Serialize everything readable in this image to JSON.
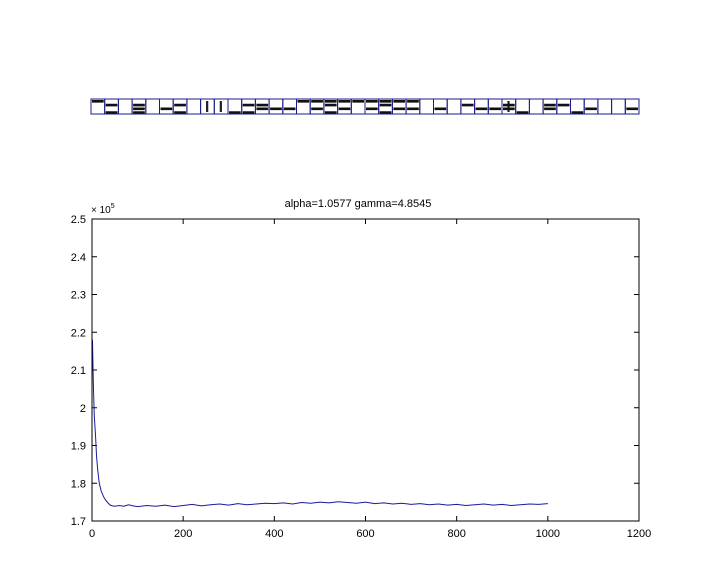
{
  "filter_strip": {
    "count": 40,
    "frame_color": "#1a1a8c",
    "tiles": [
      "1000000000000001111111110000000000000000",
      "0000000001000000000000000000001000000000",
      "0101001000011000010001000001001001100000",
      "0000000000000000000000000000000000000000",
      "0001010000001110101010110100111001001001",
      "0000000010000000000000000000000000000000",
      "0101001000110000010001000000000100010000",
      "0000000000000000000000000000000000000000"
    ]
  },
  "chart_data": {
    "type": "line",
    "title": "alpha=1.0577  gamma=4.8545",
    "xlabel": "",
    "ylabel": "",
    "y_multiplier": "× 10",
    "y_multiplier_exponent": "5",
    "xlim": [
      0,
      1200
    ],
    "ylim": [
      1.7,
      2.5
    ],
    "xticks": [
      "0",
      "200",
      "400",
      "600",
      "800",
      "1000",
      "1200"
    ],
    "yticks": [
      "1.7",
      "1.8",
      "1.9",
      "2",
      "2.1",
      "2.2",
      "2.3",
      "2.4",
      "2.5"
    ],
    "grid": false,
    "line_color": "#1a1aa0",
    "series": [
      {
        "x": [
          1,
          3,
          5,
          8,
          10,
          13,
          16,
          20,
          25,
          30,
          35,
          40,
          45,
          50,
          60,
          70,
          80,
          90,
          100,
          120,
          140,
          160,
          180,
          200,
          220,
          240,
          260,
          280,
          300,
          320,
          340,
          360,
          380,
          400,
          420,
          440,
          460,
          480,
          500,
          520,
          540,
          560,
          580,
          600,
          620,
          640,
          660,
          680,
          700,
          720,
          740,
          760,
          780,
          800,
          820,
          840,
          860,
          880,
          900,
          920,
          940,
          960,
          980,
          1000
        ],
        "values": [
          2.18,
          2.06,
          1.98,
          1.92,
          1.87,
          1.83,
          1.8,
          1.78,
          1.765,
          1.755,
          1.748,
          1.742,
          1.74,
          1.739,
          1.741,
          1.739,
          1.743,
          1.74,
          1.738,
          1.741,
          1.739,
          1.742,
          1.738,
          1.741,
          1.744,
          1.74,
          1.743,
          1.745,
          1.742,
          1.746,
          1.743,
          1.745,
          1.747,
          1.746,
          1.748,
          1.745,
          1.749,
          1.747,
          1.75,
          1.748,
          1.751,
          1.749,
          1.747,
          1.75,
          1.746,
          1.748,
          1.745,
          1.747,
          1.744,
          1.746,
          1.743,
          1.745,
          1.742,
          1.744,
          1.741,
          1.743,
          1.745,
          1.742,
          1.744,
          1.741,
          1.743,
          1.745,
          1.744,
          1.746
        ]
      }
    ]
  }
}
